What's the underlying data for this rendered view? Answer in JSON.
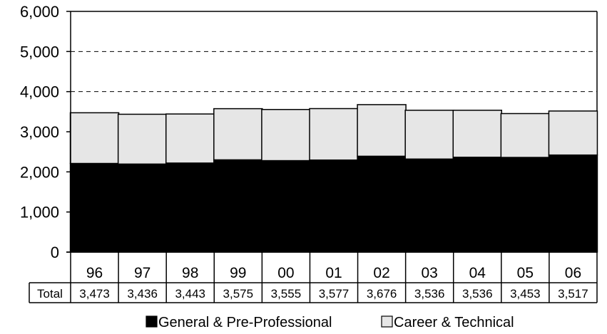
{
  "chart_data": {
    "type": "bar",
    "stacked": true,
    "categories": [
      "96",
      "97",
      "98",
      "99",
      "00",
      "01",
      "02",
      "03",
      "04",
      "05",
      "06"
    ],
    "series": [
      {
        "name": "General & Pre-Professional",
        "color": "#000000",
        "values": [
          2210,
          2195,
          2220,
          2300,
          2280,
          2295,
          2390,
          2320,
          2365,
          2360,
          2420
        ]
      },
      {
        "name": "Career & Technical",
        "color": "#e6e6e6",
        "values": [
          1263,
          1241,
          1223,
          1275,
          1275,
          1282,
          1286,
          1216,
          1171,
          1093,
          1097
        ]
      }
    ],
    "ylim": [
      0,
      6000
    ],
    "yticks": [
      "0",
      "1,000",
      "2,000",
      "3,000",
      "4,000",
      "5,000",
      "6,000"
    ],
    "grid": true,
    "table": {
      "row_label": "Total",
      "values": [
        "3,473",
        "3,436",
        "3,443",
        "3,575",
        "3,555",
        "3,577",
        "3,676",
        "3,536",
        "3,536",
        "3,453",
        "3,517"
      ]
    },
    "legend": {
      "placement": "bottom",
      "items": [
        "General & Pre-Professional",
        "Career & Technical"
      ]
    }
  }
}
